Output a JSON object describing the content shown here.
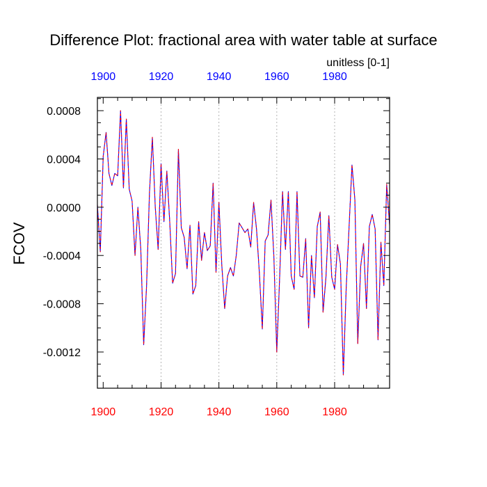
{
  "chart_data": {
    "type": "line",
    "title": "Difference Plot: fractional area with water table at surface",
    "units_label": "unitless [0-1]",
    "ylabel": "FCOV",
    "xlabel": "",
    "xlim": [
      1898,
      1999
    ],
    "ylim": [
      -0.0015,
      0.00091
    ],
    "x_ticks": [
      1900,
      1920,
      1940,
      1960,
      1980
    ],
    "x_tick_labels": [
      "1900",
      "1920",
      "1940",
      "1960",
      "1980"
    ],
    "y_ticks": [
      0.0008,
      0.0004,
      0.0,
      -0.0004,
      -0.0008,
      -0.0012
    ],
    "y_tick_labels": [
      "0.0008",
      "0.0004",
      "0.0000",
      "-0.0004",
      "-0.0008",
      "-0.0012"
    ],
    "grid": "vertical-dotted",
    "colors": {
      "top_axis": "#0000ff",
      "bottom_axis": "#ff0000",
      "line_a": "#0000ff",
      "line_b": "#ff0000",
      "grid": "#b4b4b4",
      "text": "#000000"
    },
    "x": [
      1898,
      1899,
      1900,
      1901,
      1902,
      1903,
      1904,
      1905,
      1906,
      1907,
      1908,
      1909,
      1910,
      1911,
      1912,
      1913,
      1914,
      1915,
      1916,
      1917,
      1918,
      1919,
      1920,
      1921,
      1922,
      1923,
      1924,
      1925,
      1926,
      1927,
      1928,
      1929,
      1930,
      1931,
      1932,
      1933,
      1934,
      1935,
      1936,
      1937,
      1938,
      1939,
      1940,
      1941,
      1942,
      1943,
      1944,
      1945,
      1946,
      1947,
      1948,
      1949,
      1950,
      1951,
      1952,
      1953,
      1954,
      1955,
      1956,
      1957,
      1958,
      1959,
      1960,
      1961,
      1962,
      1963,
      1964,
      1965,
      1966,
      1967,
      1968,
      1969,
      1970,
      1971,
      1972,
      1973,
      1974,
      1975,
      1976,
      1977,
      1978,
      1979,
      1980,
      1981,
      1982,
      1983,
      1984,
      1985,
      1986,
      1987,
      1988,
      1989,
      1990,
      1991,
      1992,
      1993,
      1994,
      1995,
      1996,
      1997,
      1998,
      1999
    ],
    "series": [
      {
        "name": "difference",
        "values": [
          2e-05,
          -0.00037,
          0.00042,
          0.00062,
          0.00028,
          0.00018,
          0.00028,
          0.00026,
          0.0008,
          0.00016,
          0.00073,
          0.00015,
          5e-05,
          -0.0004,
          0.0,
          -0.00035,
          -0.00114,
          -0.00065,
          0.00012,
          0.00058,
          0.0,
          -0.00035,
          0.00036,
          -0.00012,
          0.0003,
          -0.00012,
          -0.00063,
          -0.00055,
          0.00048,
          -0.00017,
          -0.00025,
          -0.00051,
          -0.00015,
          -0.00072,
          -0.00065,
          -0.00012,
          -0.00044,
          -0.00021,
          -0.00036,
          -0.00032,
          0.0002,
          -0.00054,
          4e-05,
          -0.00048,
          -0.00084,
          -0.00057,
          -0.0005,
          -0.00057,
          -0.0004,
          -0.00013,
          -0.00017,
          -0.00021,
          -0.00018,
          -0.00033,
          4e-05,
          -0.00018,
          -0.00055,
          -0.00101,
          -0.00028,
          -0.00023,
          6e-05,
          -0.00041,
          -0.0012,
          -0.00058,
          0.00013,
          -0.00035,
          0.00013,
          -0.00057,
          -0.00068,
          0.00013,
          -0.00057,
          -0.00058,
          -0.00026,
          -0.001,
          -0.0004,
          -0.00075,
          -0.00016,
          -4e-05,
          -0.00087,
          -0.00058,
          -7e-05,
          -0.00058,
          -0.00068,
          -0.00031,
          -0.00047,
          -0.00139,
          -0.00067,
          -0.00016,
          0.00035,
          6e-05,
          -0.00113,
          -0.00049,
          -0.0003,
          -0.00084,
          -0.00016,
          -6e-05,
          -0.00018,
          -0.0011,
          -0.00029,
          -0.00065,
          0.00019,
          -0.00015
        ]
      }
    ]
  }
}
